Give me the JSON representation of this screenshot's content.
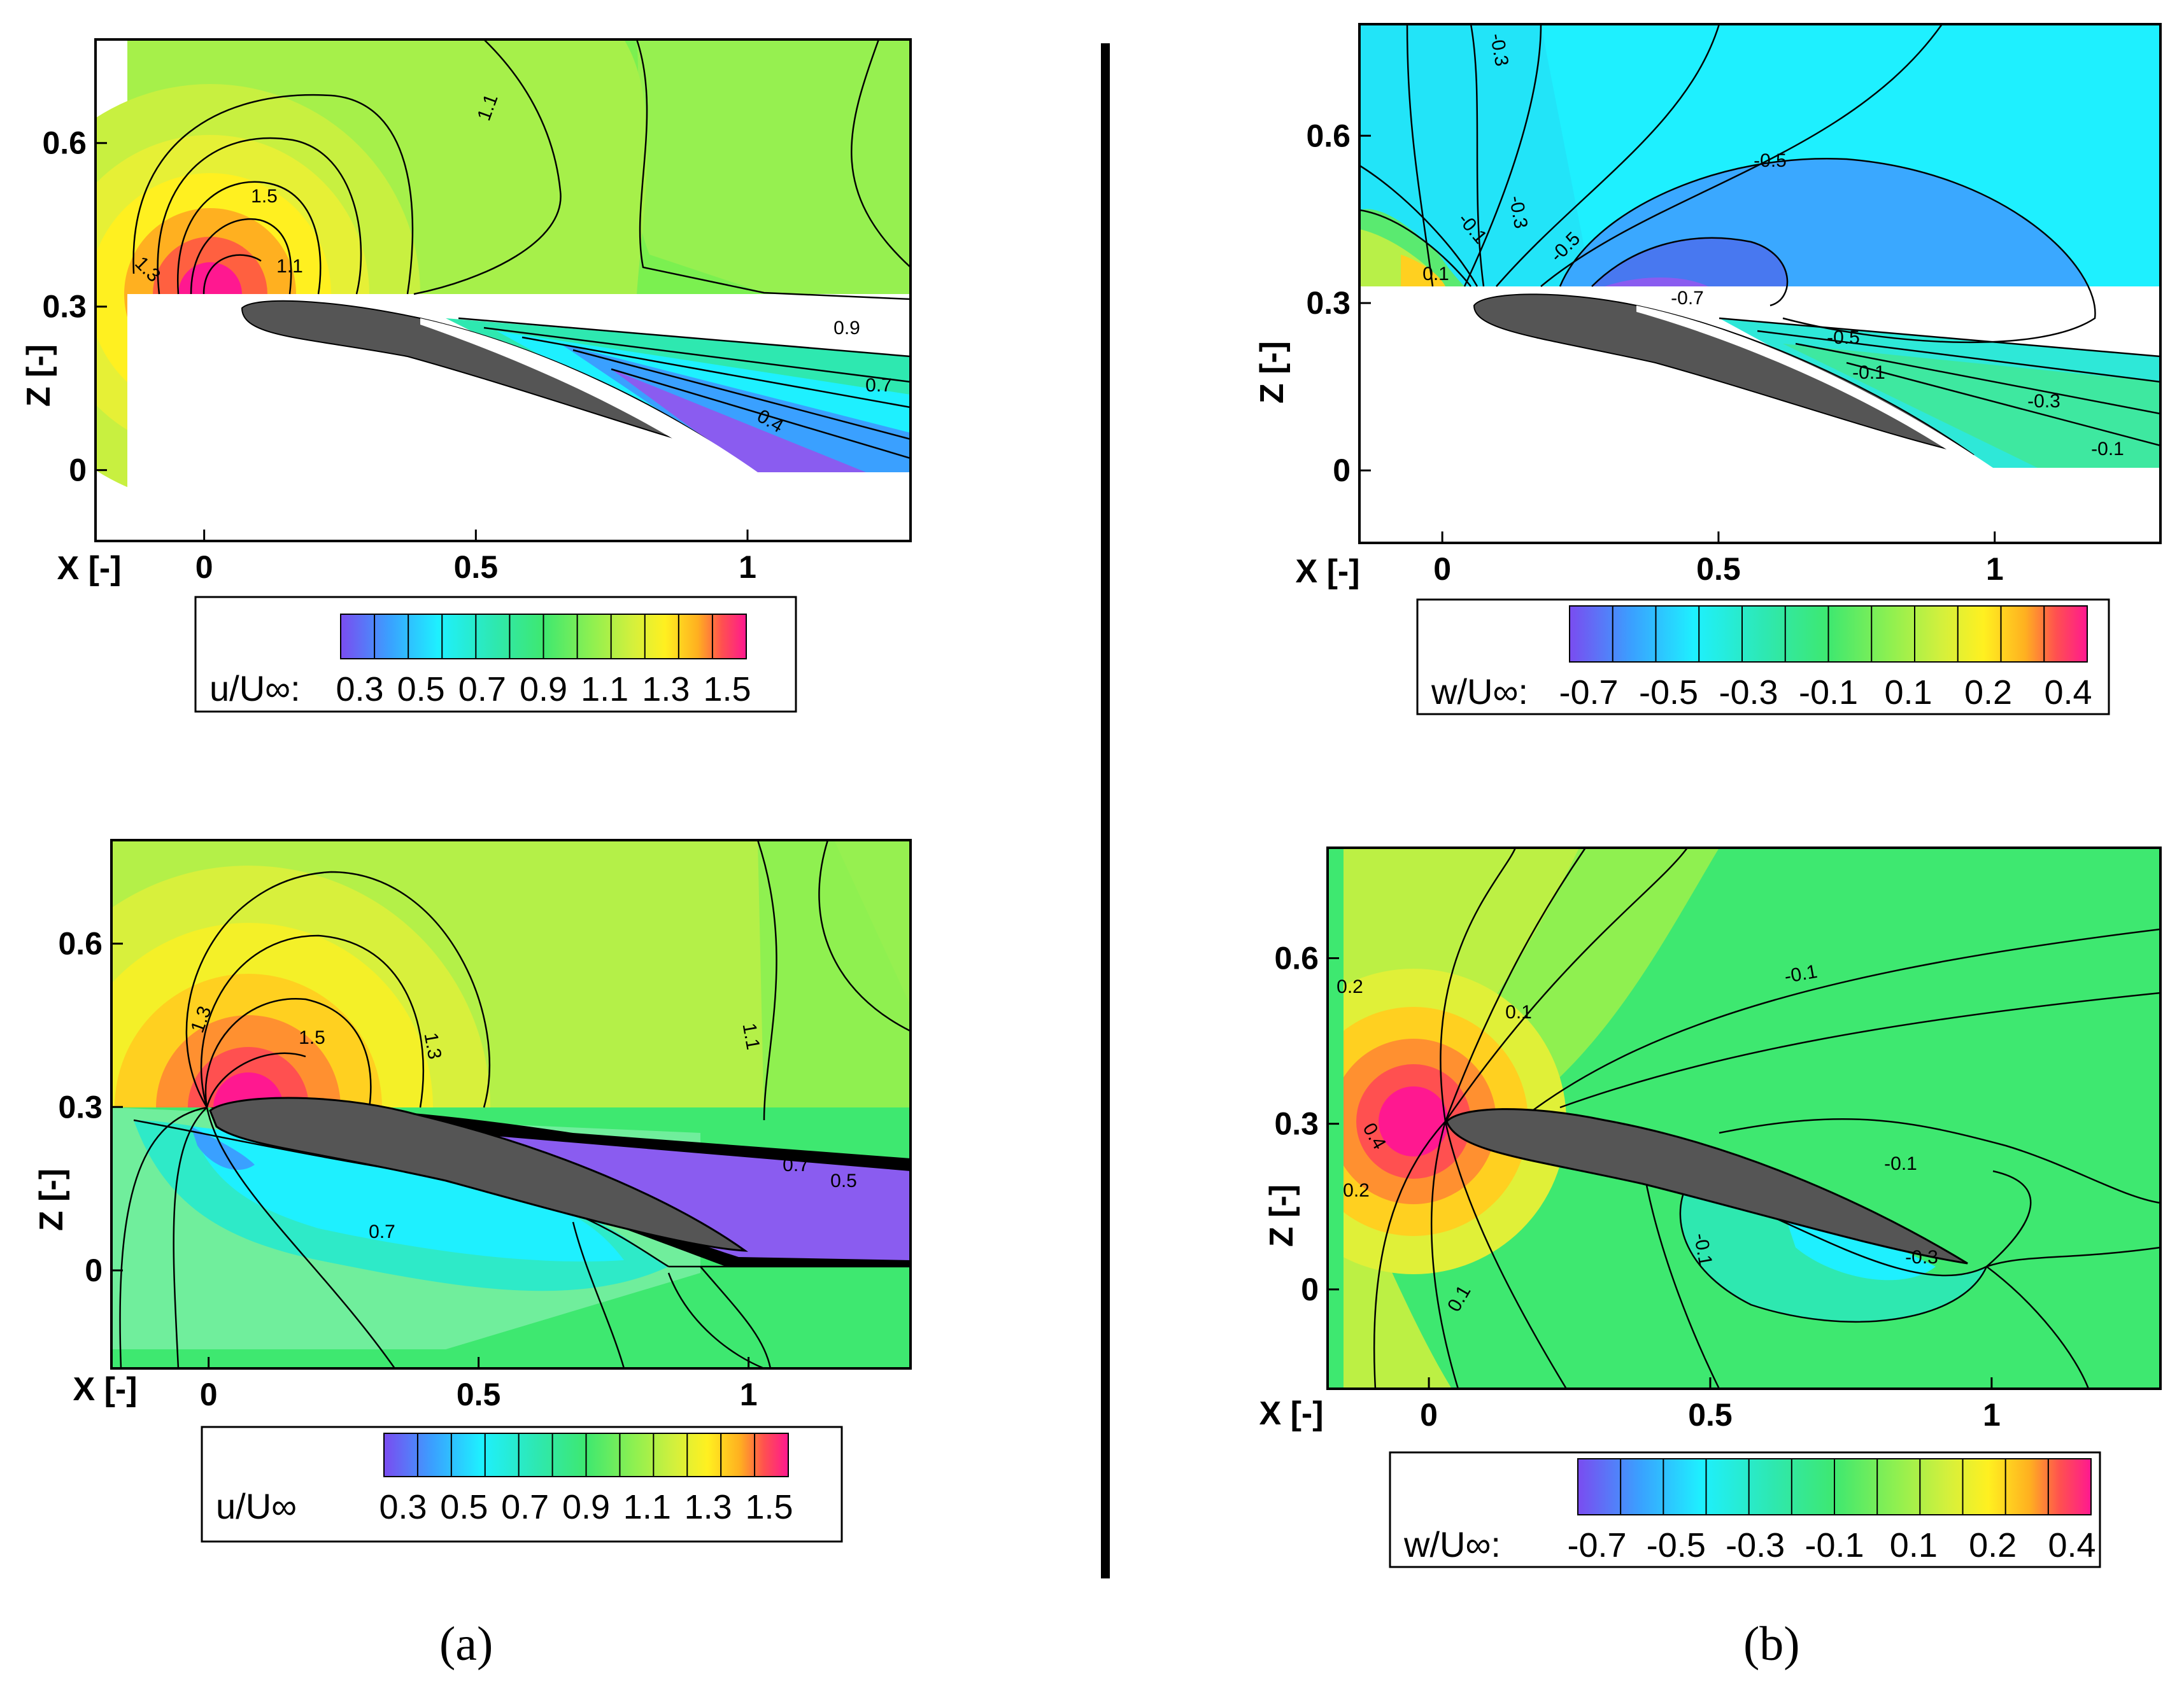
{
  "figure": {
    "captions": [
      "(a)",
      "(b)"
    ],
    "x_axis_label": "X [-]",
    "z_axis_label": "Z [-]",
    "colors": {
      "purple": "#8a5cf0",
      "blue": "#3aa0ff",
      "cyan": "#1ef0ff",
      "teal": "#2ee8b0",
      "green": "#3ee870",
      "lime": "#8ff050",
      "yellowgreen": "#d4f03c",
      "yellow": "#fff020",
      "orange": "#ffb020",
      "red": "#ff5050",
      "magenta": "#ff1890",
      "airfoil": "#555555"
    }
  },
  "chart_data": [
    {
      "type": "contour",
      "panel": "a-top",
      "variable": "u/U∞",
      "xlabel": "X [-]",
      "ylabel": "Z [-]",
      "xlim": [
        -0.2,
        1.3
      ],
      "ylim": [
        -0.13,
        0.79
      ],
      "xticks": [
        "0",
        "0.5",
        "1"
      ],
      "yticks": [
        "0",
        "0.3",
        "0.6"
      ],
      "colorbar": {
        "label": "u/U∞:",
        "ticks": [
          "0.3",
          "0.5",
          "0.7",
          "0.9",
          "1.1",
          "1.3",
          "1.5"
        ],
        "range": [
          0.25,
          1.6
        ]
      },
      "contour_labels": [
        "1.1",
        "1.3",
        "1.5",
        "1.1",
        "0.9",
        "0.7",
        "0.4"
      ]
    },
    {
      "type": "contour",
      "panel": "a-bottom",
      "variable": "u/U∞",
      "xlabel": "X [-]",
      "ylabel": "Z [-]",
      "xlim": [
        -0.18,
        1.3
      ],
      "ylim": [
        -0.18,
        0.79
      ],
      "xticks": [
        "0",
        "0.5",
        "1"
      ],
      "yticks": [
        "0",
        "0.3",
        "0.6"
      ],
      "colorbar": {
        "label": "u/U∞",
        "ticks": [
          "0.3",
          "0.5",
          "0.7",
          "0.9",
          "1.1",
          "1.3",
          "1.5"
        ],
        "range": [
          0.25,
          1.6
        ]
      },
      "contour_labels": [
        "1.3",
        "1.5",
        "1.3",
        "1.1",
        "0.7",
        "0.7",
        "0.5"
      ]
    },
    {
      "type": "contour",
      "panel": "b-top",
      "variable": "w/U∞",
      "xlabel": "X [-]",
      "ylabel": "Z [-]",
      "xlim": [
        -0.15,
        1.3
      ],
      "ylim": [
        -0.13,
        0.8
      ],
      "xticks": [
        "0",
        "0.5",
        "1"
      ],
      "yticks": [
        "0",
        "0.3",
        "0.6"
      ],
      "colorbar": {
        "label": "w/U∞:",
        "ticks": [
          "-0.7",
          "-0.5",
          "-0.3",
          "-0.1",
          "0.1",
          "0.2",
          "0.4"
        ],
        "range": [
          -0.8,
          0.5
        ]
      },
      "contour_labels": [
        "-0.3",
        "-0.5",
        "-0.1",
        "-0.3",
        "-0.5",
        "0.1",
        "-0.7",
        "-0.5",
        "-0.1",
        "-0.3",
        "-0.1"
      ]
    },
    {
      "type": "contour",
      "panel": "b-bottom",
      "variable": "w/U∞",
      "xlabel": "X [-]",
      "ylabel": "Z [-]",
      "xlim": [
        -0.18,
        1.3
      ],
      "ylim": [
        -0.18,
        0.8
      ],
      "xticks": [
        "0",
        "0.5",
        "1"
      ],
      "yticks": [
        "0",
        "0.3",
        "0.6"
      ],
      "colorbar": {
        "label": "w/U∞:",
        "ticks": [
          "-0.7",
          "-0.5",
          "-0.3",
          "-0.1",
          "0.1",
          "0.2",
          "0.4"
        ],
        "range": [
          -0.8,
          0.5
        ]
      },
      "contour_labels": [
        "0.2",
        "0.1",
        "-0.1",
        "0.4",
        "-0.1",
        "0.2",
        "-0.1",
        "-0.3",
        "0.1"
      ]
    }
  ]
}
